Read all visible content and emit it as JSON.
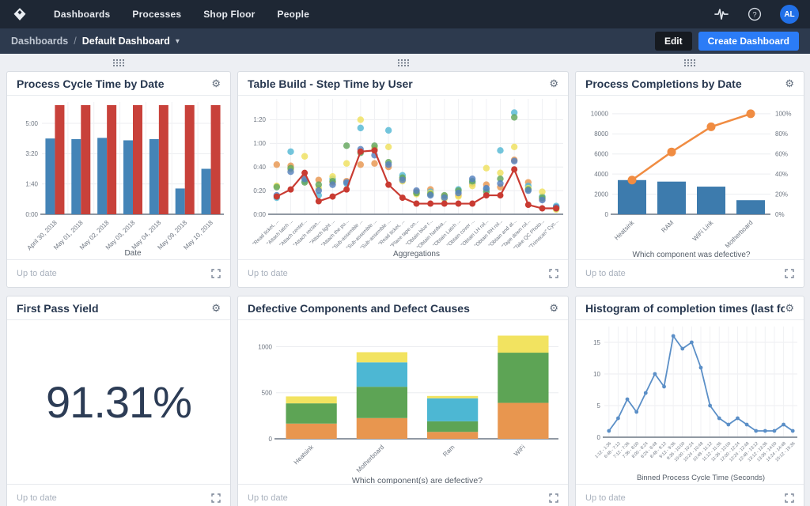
{
  "nav": {
    "items": [
      "Dashboards",
      "Processes",
      "Shop Floor",
      "People"
    ],
    "avatar": "AL"
  },
  "breadcrumb": {
    "root": "Dashboards",
    "separator": "/",
    "current": "Default Dashboard"
  },
  "actions": {
    "edit": "Edit",
    "create": "Create Dashboard"
  },
  "footer_status": "Up to date",
  "icons": {
    "settings": "⚙",
    "caret": "▾",
    "help": "?"
  },
  "colors": {
    "accent_blue": "#2b7cf6",
    "avatar_blue": "#2170e8",
    "nav_dark": "#1e2734",
    "crumb_dark": "#2d3a4e"
  },
  "cards": [
    {
      "title": "Process Cycle Time by Date",
      "chart_data": {
        "type": "grouped_bar",
        "categories": [
          "April 30, 2018",
          "May 01, 2018",
          "May 02, 2018",
          "May 03, 2018",
          "May 04, 2018",
          "May 09, 2018",
          "May 10, 2018"
        ],
        "series": [
          {
            "name": "series_blue",
            "color": "#4484b7",
            "values": [
              250,
              248,
              252,
              244,
              248,
              85,
              150
            ]
          },
          {
            "name": "series_red",
            "color": "#c8413a",
            "values": [
              360,
              360,
              360,
              360,
              360,
              360,
              360
            ]
          }
        ],
        "xlabel": "Date",
        "ymax": 360,
        "yticks": [
          {
            "v": 0,
            "label": "0:00"
          },
          {
            "v": 100,
            "label": "1:40"
          },
          {
            "v": 200,
            "label": "3:20"
          },
          {
            "v": 300,
            "label": "5:00"
          }
        ]
      }
    },
    {
      "title": "Table Build - Step Time by User",
      "chart_data": {
        "type": "scatter_line",
        "categories": [
          "\"Read ticket, ...",
          "\"Attach latch ...",
          "\"Attach center...",
          "\"Attach rectan...",
          "\"Attach light ...",
          "\"Attach the pu...",
          "\"Sub-assemble ...",
          "\"Sub-assemble ...",
          "\"Sub-assemble ...",
          "\"Read ticket, ...",
          "\"Place tape on...",
          "\"Obtain blue r...",
          "\"Obtain hardwa...",
          "\"Obtain Latch ...",
          "\"Obtain cover ...",
          "\"Obtain LH rol...",
          "\"Obtain RH rol...",
          "\"Obtain and at...",
          "\"Tape down rol...",
          "\"Take QC Photo...",
          "\"Trimscan\" Cyc..."
        ],
        "series": [
          {
            "name": "series_orange",
            "color": "#e8964f",
            "line": false,
            "values": [
              42,
              41,
              30,
              29,
              27,
              28,
              42,
              43,
              40,
              30,
              19,
              21,
              15,
              16,
              26,
              25,
              23,
              46,
              27,
              13,
              6
            ]
          },
          {
            "name": "series_cyan",
            "color": "#54b8d4",
            "line": false,
            "values": [
              14,
              53,
              28,
              16,
              30,
              26,
              73,
              55,
              71,
              33,
              18,
              19,
              14,
              21,
              27,
              21,
              54,
              86,
              24,
              15,
              7
            ]
          },
          {
            "name": "series_yellow",
            "color": "#efe15e",
            "line": false,
            "values": [
              24,
              38,
              49,
              22,
              32,
              43,
              80,
              56,
              57,
              28,
              17,
              18,
              13,
              15,
              24,
              39,
              35,
              57,
              22,
              19,
              4
            ]
          },
          {
            "name": "series_green",
            "color": "#63a65c",
            "line": false,
            "values": [
              23,
              39,
              27,
              25,
              28,
              58,
              52,
              58,
              44,
              31,
              18,
              17,
              16,
              20,
              28,
              19,
              30,
              82,
              21,
              14,
              5
            ]
          },
          {
            "name": "series_blue",
            "color": "#5581c0",
            "line": false,
            "values": [
              16,
              36,
              30,
              20,
              25,
              27,
              55,
              50,
              42,
              29,
              20,
              16,
              14,
              18,
              30,
              22,
              26,
              45,
              20,
              12,
              6
            ]
          },
          {
            "name": "series_red",
            "color": "#c93b32",
            "line": true,
            "values": [
              15,
              21,
              35,
              11,
              15,
              21,
              53,
              54,
              25,
              14,
              9,
              9,
              9,
              9,
              9,
              16,
              16,
              38,
              8,
              5,
              5
            ]
          }
        ],
        "xlabel": "Aggregations",
        "ymax": 95,
        "yticks": [
          {
            "v": 0,
            "label": "0:00"
          },
          {
            "v": 20,
            "label": "0:20"
          },
          {
            "v": 40,
            "label": "0:40"
          },
          {
            "v": 60,
            "label": "1:00"
          },
          {
            "v": 80,
            "label": "1:20"
          }
        ]
      }
    },
    {
      "title": "Process Completions by Date",
      "chart_data": {
        "type": "pareto",
        "categories": [
          "Heatsink",
          "RAM",
          "WiFi Link",
          "Motherboard"
        ],
        "bar_values": [
          3400,
          3250,
          2750,
          1400
        ],
        "bar_color": "#3d7bad",
        "line_values": [
          3400,
          6200,
          8700,
          10000
        ],
        "line_color": "#f08c42",
        "xlabel": "Which component was defective?",
        "ymax": 10700,
        "yticks": [
          {
            "v": 0,
            "label": "0"
          },
          {
            "v": 2000,
            "label": "2000"
          },
          {
            "v": 4000,
            "label": "4000"
          },
          {
            "v": 6000,
            "label": "6000"
          },
          {
            "v": 8000,
            "label": "8000"
          },
          {
            "v": 10000,
            "label": "10000"
          }
        ],
        "right_tick_labels": [
          "0%",
          "20%",
          "40%",
          "60%",
          "80%",
          "100%"
        ]
      }
    },
    {
      "title": "First Pass Yield",
      "value": "91.31%",
      "chart_data": {
        "type": "big_number",
        "value": "91.31%"
      }
    },
    {
      "title": "Defective Components and Defect Causes",
      "chart_data": {
        "type": "stacked_bar",
        "categories": [
          "Heatsink",
          "Motherboard",
          "Ram",
          "WiFi"
        ],
        "series": [
          {
            "name": "series_orange",
            "color": "#e8964f",
            "values": [
              165,
              225,
              75,
              390
            ]
          },
          {
            "name": "series_green",
            "color": "#5da455",
            "values": [
              220,
              340,
              115,
              545
            ]
          },
          {
            "name": "series_cyan",
            "color": "#4db7d3",
            "values": [
              0,
              265,
              250,
              0
            ]
          },
          {
            "name": "series_yellow",
            "color": "#f2e360",
            "values": [
              75,
              110,
              25,
              185
            ]
          }
        ],
        "xlabel": "Which component(s) are defective?",
        "ymax": 1150,
        "yticks": [
          {
            "v": 0,
            "label": "0"
          },
          {
            "v": 500,
            "label": "500"
          },
          {
            "v": 1000,
            "label": "1000"
          }
        ]
      }
    },
    {
      "title": "Histogram of completion times (last fo...",
      "chart_data": {
        "type": "line",
        "categories": [
          "1:12 - 1:36",
          "6:48 - 7:12",
          "7:12 - 7:36",
          "7:36 - 8:00",
          "8:00 - 8:24",
          "8:24 - 8:48",
          "8:48 - 9:12",
          "9:12 - 9:36",
          "9:36 - 10:00",
          "10:00 - 10:24",
          "10:24 - 10:48",
          "10:48 - 11:12",
          "11:12 - 11:36",
          "11:36 - 12:00",
          "12:00 - 12:24",
          "12:24 - 12:48",
          "12:48 - 13:12",
          "13:12 - 13:36",
          "13:36 - 14:00",
          "14:24 - 14:48",
          "15:12 - 15:36"
        ],
        "values": [
          1,
          3,
          6,
          4,
          7,
          10,
          8,
          16,
          14,
          15,
          11,
          5,
          3,
          2,
          3,
          2,
          1,
          1,
          1,
          2,
          1
        ],
        "color": "#5b8fc7",
        "xlabel": "Binned Process Cycle Time (Seconds)",
        "ymax": 17,
        "yticks": [
          {
            "v": 0,
            "label": "0"
          },
          {
            "v": 5,
            "label": "5"
          },
          {
            "v": 10,
            "label": "10"
          },
          {
            "v": 15,
            "label": "15"
          }
        ]
      }
    }
  ]
}
